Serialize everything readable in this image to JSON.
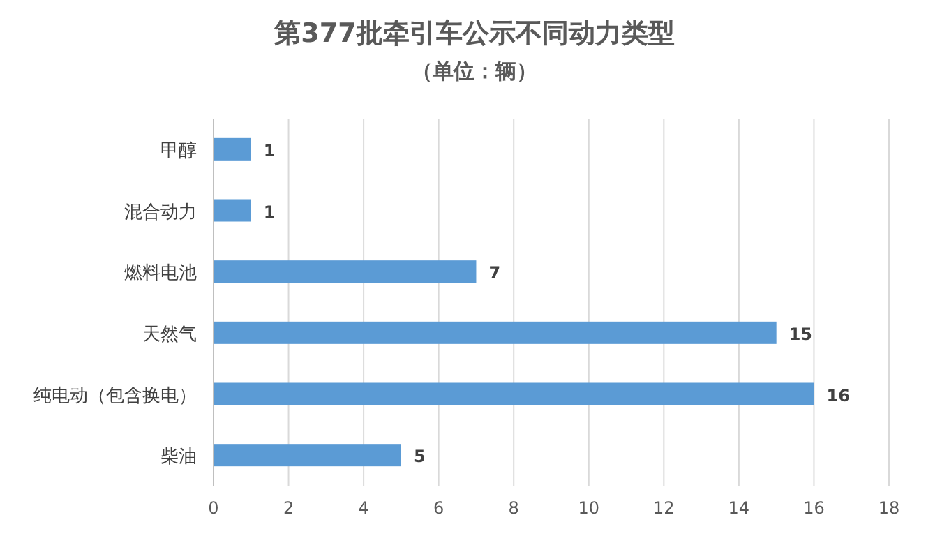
{
  "chart_data": {
    "type": "bar",
    "orientation": "horizontal",
    "title": "第377批牵引车公示不同动力类型",
    "subtitle": "（单位：辆）",
    "categories": [
      "甲醇",
      "混合动力",
      "燃料电池",
      "天然气",
      "纯电动（包含换电）",
      "柴油"
    ],
    "values": [
      1,
      1,
      7,
      15,
      16,
      5
    ],
    "color": "#5b9bd5",
    "xlim": [
      0,
      18
    ],
    "xticks": [
      0,
      2,
      4,
      6,
      8,
      10,
      12,
      14,
      16,
      18
    ],
    "grid": "x",
    "data_labels": true
  }
}
